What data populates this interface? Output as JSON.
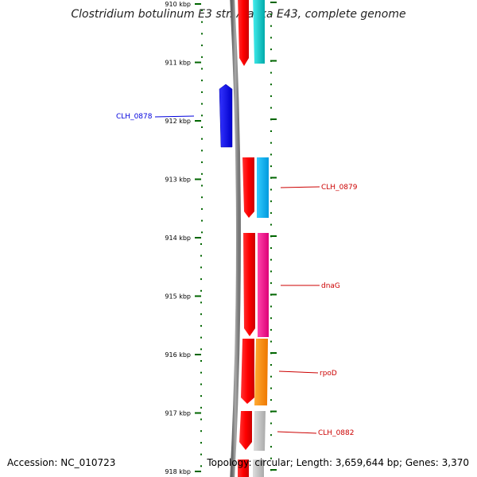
{
  "title": "Clostridium botulinum E3 str. Alaska E43, complete genome",
  "footer": {
    "accession": "Accession: NC_010723",
    "summary": "Topology: circular; Length: 3,659,644 bp; Genes: 3,370"
  },
  "ticks": [
    {
      "label": "910 kbp",
      "kbp": 910
    },
    {
      "label": "911 kbp",
      "kbp": 911
    },
    {
      "label": "912 kbp",
      "kbp": 912
    },
    {
      "label": "913 kbp",
      "kbp": 913
    },
    {
      "label": "914 kbp",
      "kbp": 914
    },
    {
      "label": "915 kbp",
      "kbp": 915
    },
    {
      "label": "916 kbp",
      "kbp": 916
    },
    {
      "label": "917 kbp",
      "kbp": 917
    },
    {
      "label": "918 kbp",
      "kbp": 918
    }
  ],
  "genes": [
    {
      "name": "CLH_0878",
      "color": "#0000dd",
      "strand": "minus"
    },
    {
      "name": "CLH_0879",
      "color": "#cc0000",
      "strand": "plus"
    },
    {
      "name": "dnaG",
      "color": "#cc0000",
      "strand": "plus"
    },
    {
      "name": "rpoD",
      "color": "#cc0000",
      "strand": "plus"
    },
    {
      "name": "CLH_0882",
      "color": "#cc0000",
      "strand": "plus"
    }
  ],
  "colors": {
    "backbone": "#888888",
    "cds": "#ff0000",
    "tick": "#006600",
    "cyan": "#00cccc",
    "light_blue": "#00aaee",
    "magenta": "#ee1188",
    "orange": "#ff8800",
    "gray": "#bbbbbb",
    "minus_strand": "#0000ee"
  }
}
